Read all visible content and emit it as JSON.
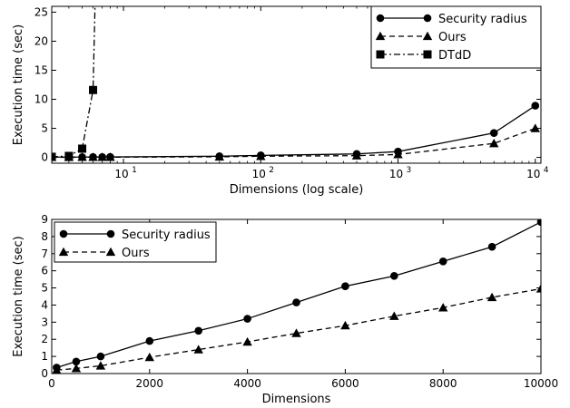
{
  "chart_data": [
    {
      "type": "line",
      "xscale": "log",
      "xlabel": "Dimensions (log scale)",
      "ylabel": "Execution time (sec)",
      "xlim": [
        3,
        11000
      ],
      "ylim": [
        -1,
        26
      ],
      "xticks": [
        {
          "value": 10,
          "base": "10",
          "exp": "1"
        },
        {
          "value": 100,
          "base": "10",
          "exp": "2"
        },
        {
          "value": 1000,
          "base": "10",
          "exp": "3"
        },
        {
          "value": 10000,
          "base": "10",
          "exp": "4"
        }
      ],
      "yticks": [
        0,
        5,
        10,
        15,
        20,
        25
      ],
      "legend_position": "top-right",
      "series": [
        {
          "name": "Security radius",
          "marker": "circle",
          "linestyle": "solid",
          "points": [
            [
              3,
              0.05
            ],
            [
              4,
              0.05
            ],
            [
              5,
              0.05
            ],
            [
              6,
              0.06
            ],
            [
              7,
              0.07
            ],
            [
              8,
              0.08
            ],
            [
              50,
              0.2
            ],
            [
              100,
              0.35
            ],
            [
              500,
              0.6
            ],
            [
              1000,
              1.0
            ],
            [
              5000,
              4.2
            ],
            [
              10000,
              8.9
            ]
          ]
        },
        {
          "name": "Ours",
          "marker": "triangle",
          "linestyle": "dashed",
          "points": [
            [
              3,
              0.02
            ],
            [
              4,
              0.02
            ],
            [
              5,
              0.03
            ],
            [
              6,
              0.03
            ],
            [
              7,
              0.04
            ],
            [
              8,
              0.04
            ],
            [
              50,
              0.1
            ],
            [
              100,
              0.2
            ],
            [
              500,
              0.3
            ],
            [
              1000,
              0.5
            ],
            [
              5000,
              2.4
            ],
            [
              10000,
              5.0
            ]
          ]
        },
        {
          "name": "DTdD",
          "marker": "square",
          "linestyle": "dashdot",
          "points": [
            [
              3,
              0.1
            ],
            [
              4,
              0.25
            ],
            [
              5,
              1.5
            ],
            [
              6,
              11.6
            ]
          ],
          "extend_to": [
            6.2,
            26
          ]
        }
      ]
    },
    {
      "type": "line",
      "xscale": "linear",
      "xlabel": "Dimensions",
      "ylabel": "Execution time (sec)",
      "xlim": [
        0,
        10000
      ],
      "ylim": [
        0,
        9
      ],
      "xticks": [
        0,
        2000,
        4000,
        6000,
        8000,
        10000
      ],
      "yticks": [
        0,
        1,
        2,
        3,
        4,
        5,
        6,
        7,
        8,
        9
      ],
      "legend_position": "top-left",
      "series": [
        {
          "name": "Security radius",
          "marker": "circle",
          "linestyle": "solid",
          "points": [
            [
              100,
              0.35
            ],
            [
              500,
              0.7
            ],
            [
              1000,
              1.0
            ],
            [
              2000,
              1.9
            ],
            [
              3000,
              2.5
            ],
            [
              4000,
              3.2
            ],
            [
              5000,
              4.15
            ],
            [
              6000,
              5.1
            ],
            [
              7000,
              5.7
            ],
            [
              8000,
              6.55
            ],
            [
              9000,
              7.4
            ],
            [
              10000,
              8.85
            ]
          ]
        },
        {
          "name": "Ours",
          "marker": "triangle",
          "linestyle": "dashed",
          "points": [
            [
              100,
              0.2
            ],
            [
              500,
              0.3
            ],
            [
              1000,
              0.45
            ],
            [
              2000,
              0.95
            ],
            [
              3000,
              1.4
            ],
            [
              4000,
              1.85
            ],
            [
              5000,
              2.35
            ],
            [
              6000,
              2.8
            ],
            [
              7000,
              3.35
            ],
            [
              8000,
              3.85
            ],
            [
              9000,
              4.45
            ],
            [
              10000,
              4.95
            ]
          ]
        }
      ]
    }
  ]
}
